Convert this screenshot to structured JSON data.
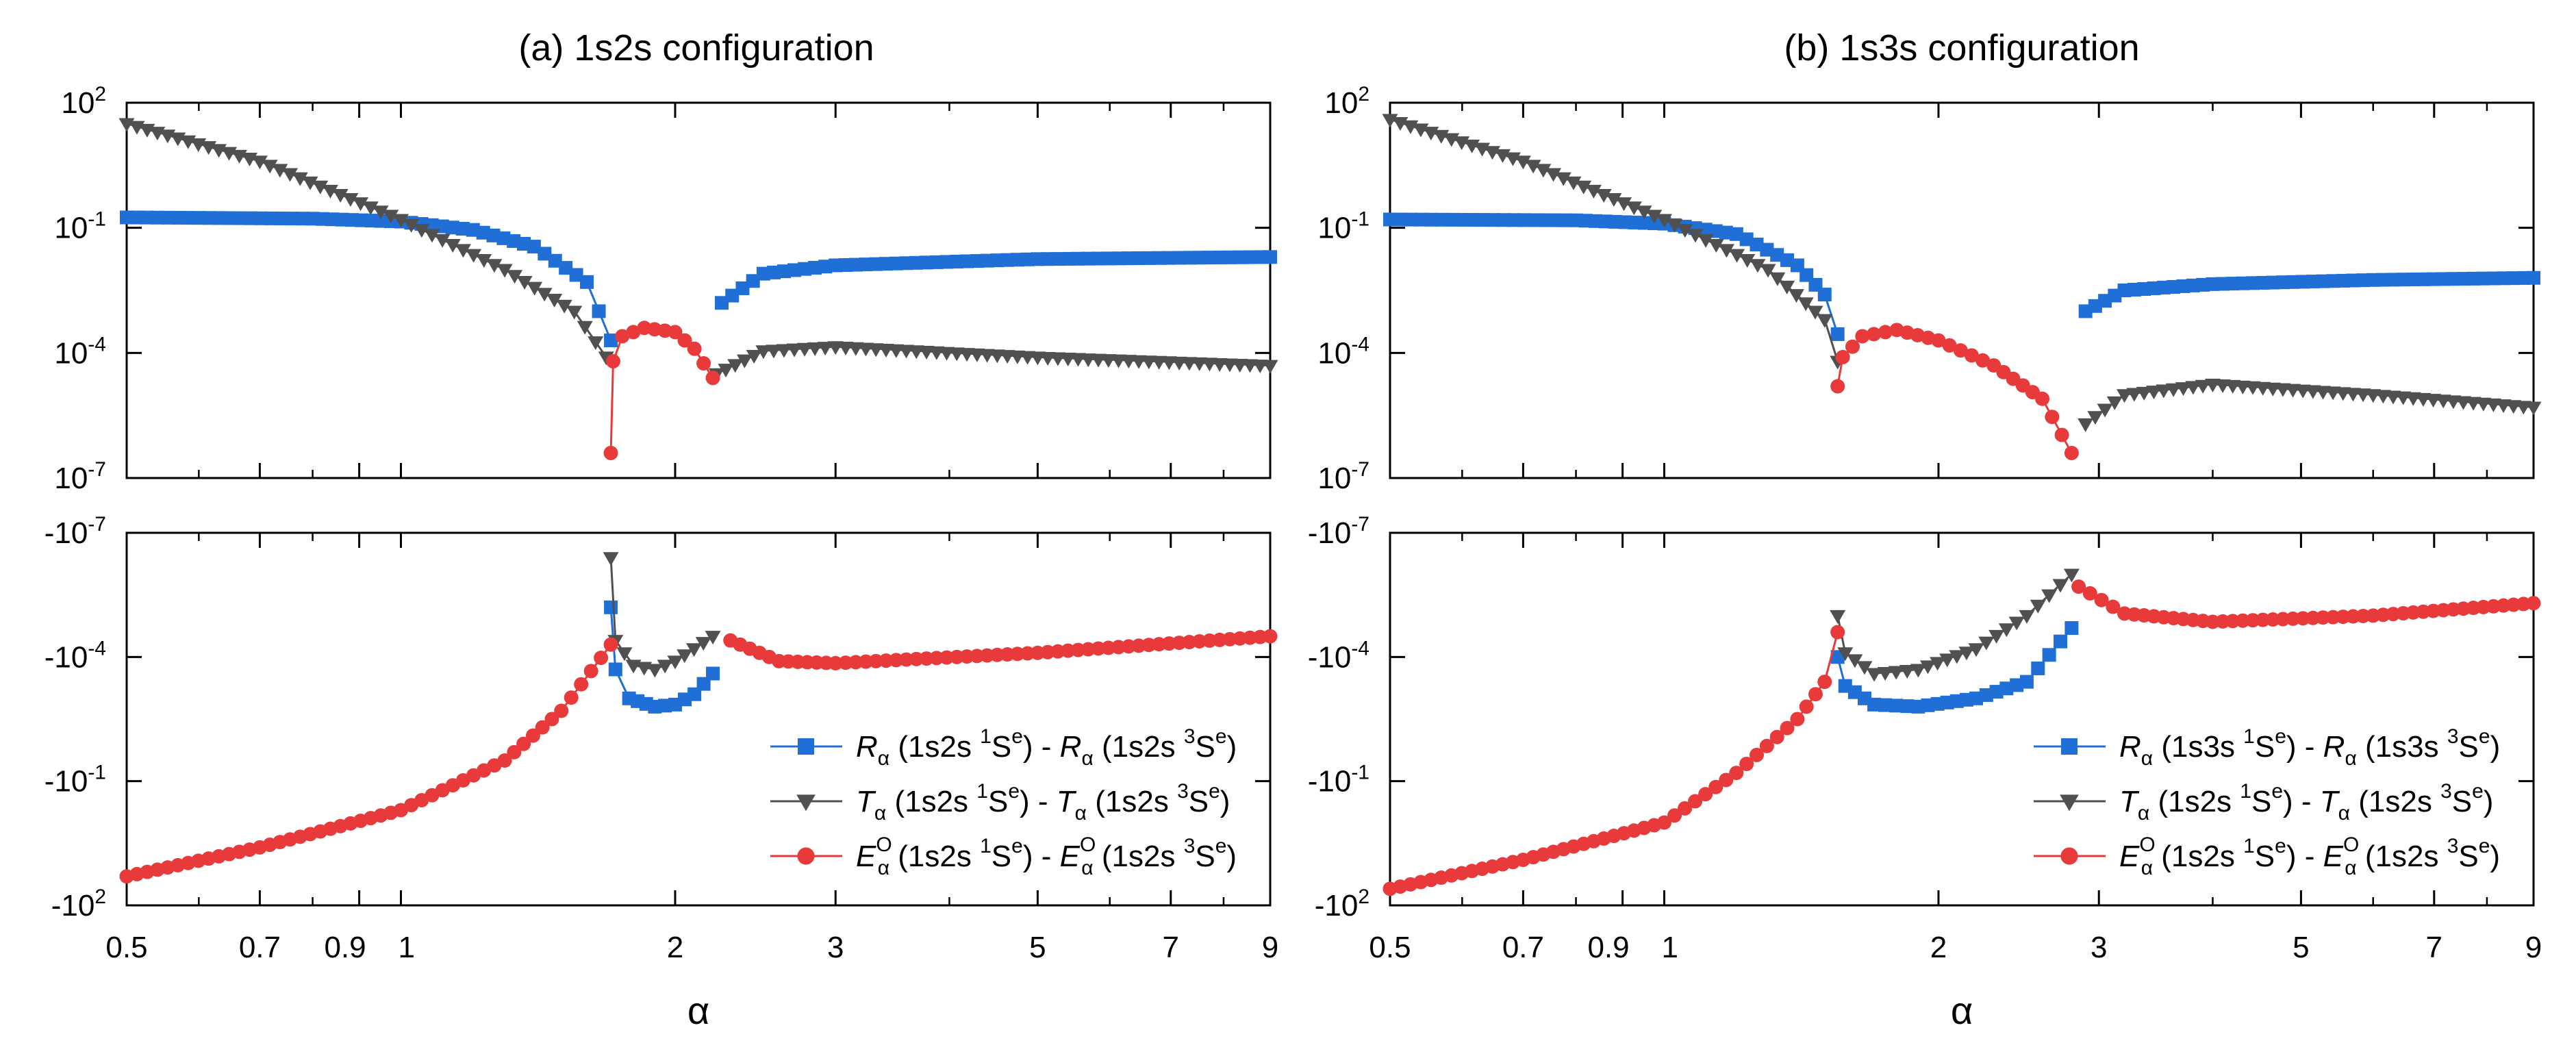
{
  "chart_data": [
    {
      "type": "scatter",
      "title": "(a) 1s2s configuration",
      "xlabel": "α",
      "xscale": "log",
      "xlim": [
        0.5,
        9
      ],
      "x_ticks": [
        "0.5",
        "0.7",
        "0.9",
        "1",
        "2",
        "3",
        "5",
        "7",
        "9"
      ],
      "upper": {
        "yscale": "log",
        "ylim_exponent": [
          -7,
          2
        ],
        "y_ticks": [
          {
            "base": "10",
            "exp": "2"
          },
          {
            "base": "10",
            "exp": "-1"
          },
          {
            "base": "10",
            "exp": "-4"
          },
          {
            "base": "10",
            "exp": "-7"
          }
        ],
        "series": [
          {
            "name": "R",
            "color": "#1f6fd6",
            "marker": "square",
            "segments": [
              [
                [
                  0.5,
                  -0.75
                ],
                [
                  0.8,
                  -0.78
                ],
                [
                  1.0,
                  -0.85
                ],
                [
                  1.2,
                  -1.05
                ],
                [
                  1.4,
                  -1.45
                ],
                [
                  1.6,
                  -2.3
                ],
                [
                  1.7,
                  -3.7
                ]
              ],
              [
                [
                  2.25,
                  -2.8
                ],
                [
                  2.5,
                  -2.1
                ],
                [
                  3.0,
                  -1.9
                ],
                [
                  5.0,
                  -1.75
                ],
                [
                  9.0,
                  -1.7
                ]
              ]
            ]
          },
          {
            "name": "T",
            "color": "#505050",
            "marker": "triangle-down",
            "segments": [
              [
                [
                  0.5,
                  1.5
                ],
                [
                  0.7,
                  0.6
                ],
                [
                  1.0,
                  -0.8
                ],
                [
                  1.3,
                  -2.0
                ],
                [
                  1.55,
                  -3.0
                ],
                [
                  1.68,
                  -4.1
                ]
              ],
              [
                [
                  2.22,
                  -4.5
                ],
                [
                  2.5,
                  -3.95
                ],
                [
                  3.0,
                  -3.85
                ],
                [
                  5.0,
                  -4.1
                ],
                [
                  9.0,
                  -4.3
                ]
              ]
            ]
          },
          {
            "name": "E",
            "color": "#e83a3a",
            "marker": "circle",
            "segments": [
              [
                [
                  1.7,
                  -6.4
                ],
                [
                  1.71,
                  -4.2
                ],
                [
                  1.75,
                  -3.6
                ],
                [
                  1.85,
                  -3.4
                ],
                [
                  2.0,
                  -3.5
                ],
                [
                  2.1,
                  -3.9
                ],
                [
                  2.2,
                  -4.6
                ]
              ]
            ]
          }
        ]
      },
      "lower": {
        "yscale": "log-negative",
        "y_ticks": [
          {
            "base": "-10",
            "exp": "-7"
          },
          {
            "base": "-10",
            "exp": "-4"
          },
          {
            "base": "-10",
            "exp": "-1"
          },
          {
            "base": "-10",
            "exp": "2"
          }
        ],
        "series": [
          {
            "name": "R",
            "color": "#1f6fd6",
            "marker": "square",
            "segments": [
              [
                [
                  1.7,
                  -5.2
                ],
                [
                  1.72,
                  -3.7
                ],
                [
                  1.78,
                  -3.0
                ],
                [
                  1.9,
                  -2.8
                ],
                [
                  2.0,
                  -2.85
                ],
                [
                  2.1,
                  -3.1
                ],
                [
                  2.2,
                  -3.6
                ]
              ]
            ]
          },
          {
            "name": "T",
            "color": "#505050",
            "marker": "triangle-down",
            "segments": [
              [
                [
                  1.7,
                  -6.4
                ],
                [
                  1.72,
                  -4.4
                ],
                [
                  1.8,
                  -3.8
                ],
                [
                  1.9,
                  -3.7
                ],
                [
                  2.0,
                  -3.9
                ],
                [
                  2.2,
                  -4.5
                ]
              ]
            ]
          },
          {
            "name": "E",
            "color": "#e83a3a",
            "marker": "circle",
            "segments": [
              [
                [
                  0.5,
                  1.3
                ],
                [
                  0.7,
                  0.6
                ],
                [
                  1.0,
                  -0.3
                ],
                [
                  1.3,
                  -1.5
                ],
                [
                  1.5,
                  -2.7
                ],
                [
                  1.7,
                  -4.3
                ]
              ],
              [
                [
                  2.3,
                  -4.4
                ],
                [
                  2.6,
                  -3.9
                ],
                [
                  3.0,
                  -3.85
                ],
                [
                  5.0,
                  -4.1
                ],
                [
                  9.0,
                  -4.5
                ]
              ]
            ]
          }
        ]
      },
      "legend": [
        {
          "marker": "square",
          "color": "#1f6fd6",
          "var": "R",
          "sub": "α",
          "sup": "",
          "text_a": " (1s2s ",
          "state_a": "1",
          "term_a": "S",
          "parity_a": "e",
          "mid": ") - ",
          "var2": "R",
          "text_b": " (1s2s ",
          "state_b": "3",
          "term_b": "S",
          "parity_b": "e",
          "end": ")"
        },
        {
          "marker": "triangle-down",
          "color": "#505050",
          "var": "T",
          "sub": "α",
          "sup": "",
          "text_a": " (1s2s ",
          "state_a": "1",
          "term_a": "S",
          "parity_a": "e",
          "mid": ") - ",
          "var2": "T",
          "text_b": " (1s2s ",
          "state_b": "3",
          "term_b": "S",
          "parity_b": "e",
          "end": ")"
        },
        {
          "marker": "circle",
          "color": "#e83a3a",
          "var": "E",
          "sub": "α",
          "sup": "O",
          "text_a": " (1s2s ",
          "state_a": "1",
          "term_a": "S",
          "parity_a": "e",
          "mid": ") - ",
          "var2": "E",
          "text_b": " (1s2s ",
          "state_b": "3",
          "term_b": "S",
          "parity_b": "e",
          "end": ")"
        }
      ]
    },
    {
      "type": "scatter",
      "title": "(b) 1s3s configuration",
      "xlabel": "α",
      "xscale": "log",
      "xlim": [
        0.5,
        9
      ],
      "x_ticks": [
        "0.5",
        "0.7",
        "0.9",
        "1",
        "2",
        "3",
        "5",
        "7",
        "9"
      ],
      "upper": {
        "yscale": "log",
        "ylim_exponent": [
          -7,
          2
        ],
        "y_ticks": [
          {
            "base": "10",
            "exp": "2"
          },
          {
            "base": "10",
            "exp": "-1"
          },
          {
            "base": "10",
            "exp": "-4"
          },
          {
            "base": "10",
            "exp": "-7"
          }
        ],
        "series": [
          {
            "name": "R",
            "color": "#1f6fd6",
            "marker": "square",
            "segments": [
              [
                [
                  0.5,
                  -0.8
                ],
                [
                  0.8,
                  -0.82
                ],
                [
                  1.0,
                  -0.9
                ],
                [
                  1.2,
                  -1.15
                ],
                [
                  1.4,
                  -1.9
                ],
                [
                  1.5,
                  -2.6
                ],
                [
                  1.55,
                  -3.55
                ]
              ],
              [
                [
                  2.9,
                  -3.0
                ],
                [
                  3.2,
                  -2.5
                ],
                [
                  4.0,
                  -2.35
                ],
                [
                  6.0,
                  -2.25
                ],
                [
                  9.0,
                  -2.2
                ]
              ]
            ]
          },
          {
            "name": "T",
            "color": "#505050",
            "marker": "triangle-down",
            "segments": [
              [
                [
                  0.5,
                  1.6
                ],
                [
                  0.7,
                  0.6
                ],
                [
                  1.0,
                  -0.8
                ],
                [
                  1.3,
                  -2.0
                ],
                [
                  1.5,
                  -3.2
                ],
                [
                  1.55,
                  -4.2
                ]
              ],
              [
                [
                  2.9,
                  -5.7
                ],
                [
                  3.2,
                  -5.0
                ],
                [
                  4.0,
                  -4.75
                ],
                [
                  6.0,
                  -5.0
                ],
                [
                  9.0,
                  -5.3
                ]
              ]
            ]
          },
          {
            "name": "E",
            "color": "#e83a3a",
            "marker": "circle",
            "segments": [
              [
                [
                  1.55,
                  -4.8
                ],
                [
                  1.57,
                  -4.1
                ],
                [
                  1.65,
                  -3.6
                ],
                [
                  1.8,
                  -3.45
                ],
                [
                  2.0,
                  -3.7
                ],
                [
                  2.3,
                  -4.3
                ],
                [
                  2.6,
                  -5.1
                ],
                [
                  2.8,
                  -6.4
                ]
              ]
            ]
          }
        ]
      },
      "lower": {
        "yscale": "log-negative",
        "y_ticks": [
          {
            "base": "-10",
            "exp": "-7"
          },
          {
            "base": "-10",
            "exp": "-4"
          },
          {
            "base": "-10",
            "exp": "-1"
          },
          {
            "base": "-10",
            "exp": "2"
          }
        ],
        "series": [
          {
            "name": "R",
            "color": "#1f6fd6",
            "marker": "square",
            "segments": [
              [
                [
                  1.55,
                  -4.0
                ],
                [
                  1.58,
                  -3.3
                ],
                [
                  1.7,
                  -2.85
                ],
                [
                  1.9,
                  -2.8
                ],
                [
                  2.2,
                  -3.0
                ],
                [
                  2.5,
                  -3.4
                ],
                [
                  2.8,
                  -4.7
                ]
              ]
            ]
          },
          {
            "name": "T",
            "color": "#505050",
            "marker": "triangle-down",
            "segments": [
              [
                [
                  1.55,
                  -5.0
                ],
                [
                  1.58,
                  -4.1
                ],
                [
                  1.7,
                  -3.6
                ],
                [
                  1.9,
                  -3.7
                ],
                [
                  2.2,
                  -4.2
                ],
                [
                  2.5,
                  -5.0
                ],
                [
                  2.8,
                  -6.0
                ]
              ]
            ]
          },
          {
            "name": "E",
            "color": "#e83a3a",
            "marker": "circle",
            "segments": [
              [
                [
                  0.5,
                  1.6
                ],
                [
                  0.7,
                  0.9
                ],
                [
                  1.0,
                  0.0
                ],
                [
                  1.2,
                  -1.2
                ],
                [
                  1.4,
                  -2.5
                ],
                [
                  1.5,
                  -3.4
                ],
                [
                  1.55,
                  -4.6
                ]
              ],
              [
                [
                  2.85,
                  -5.7
                ],
                [
                  3.2,
                  -5.05
                ],
                [
                  4.0,
                  -4.85
                ],
                [
                  6.0,
                  -5.0
                ],
                [
                  9.0,
                  -5.3
                ]
              ]
            ]
          }
        ]
      },
      "legend": [
        {
          "marker": "square",
          "color": "#1f6fd6",
          "var": "R",
          "sub": "α",
          "sup": "",
          "text_a": " (1s3s ",
          "state_a": "1",
          "term_a": "S",
          "parity_a": "e",
          "mid": ") - ",
          "var2": "R",
          "text_b": " (1s3s ",
          "state_b": "3",
          "term_b": "S",
          "parity_b": "e",
          "end": ")"
        },
        {
          "marker": "triangle-down",
          "color": "#505050",
          "var": "T",
          "sub": "α",
          "sup": "",
          "text_a": " (1s2s ",
          "state_a": "1",
          "term_a": "S",
          "parity_a": "e",
          "mid": ") - ",
          "var2": "T",
          "text_b": " (1s2s ",
          "state_b": "3",
          "term_b": "S",
          "parity_b": "e",
          "end": ")"
        },
        {
          "marker": "circle",
          "color": "#e83a3a",
          "var": "E",
          "sub": "α",
          "sup": "O",
          "text_a": " (1s2s ",
          "state_a": "1",
          "term_a": "S",
          "parity_a": "e",
          "mid": ") - ",
          "var2": "E",
          "text_b": " (1s2s ",
          "state_b": "3",
          "term_b": "S",
          "parity_b": "e",
          "end": ")"
        }
      ]
    }
  ]
}
